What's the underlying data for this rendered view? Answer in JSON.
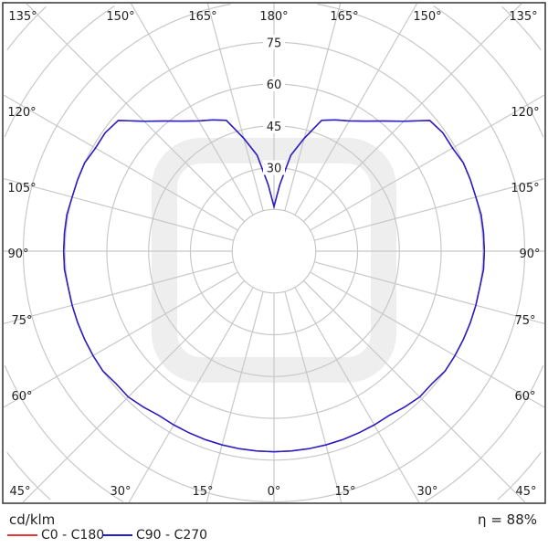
{
  "chart_data": {
    "type": "polar-line",
    "unit_label": "cd/klm",
    "efficiency_label": "η = 88%",
    "radial_ticks": [
      30,
      45,
      60,
      75
    ],
    "radial_rings": [
      15,
      30,
      45,
      60,
      75,
      90,
      105,
      120,
      135
    ],
    "angle_labels": {
      "top": [
        "135°",
        "150°",
        "165°",
        "180°",
        "165°",
        "150°",
        "135°"
      ],
      "left": [
        "120°",
        "105°",
        "90°",
        "75°",
        "60°"
      ],
      "right": [
        "120°",
        "105°",
        "90°",
        "75°",
        "60°"
      ],
      "bottom": [
        "45°",
        "30°",
        "15°",
        "0°",
        "15°",
        "30°",
        "45°"
      ]
    },
    "angles_deg": [
      0,
      5,
      10,
      15,
      20,
      25,
      30,
      35,
      40,
      45,
      50,
      55,
      60,
      65,
      70,
      75,
      80,
      85,
      90,
      95,
      100,
      105,
      110,
      115,
      120,
      125,
      130,
      135,
      140,
      145,
      150,
      155,
      160,
      165,
      170,
      175,
      180
    ],
    "series": [
      {
        "name": "C0 - C180",
        "color": "#e8343a",
        "values": [
          72,
          72,
          72,
          72,
          72,
          72,
          72,
          72,
          73,
          74,
          74,
          75,
          75,
          75,
          75,
          75,
          75,
          75.5,
          75.5,
          75.5,
          75.5,
          75,
          75,
          75,
          74,
          74,
          73,
          66,
          61,
          57,
          54,
          52,
          50,
          42,
          35,
          24,
          16
        ]
      },
      {
        "name": "C90 - C270",
        "color": "#2020d0",
        "values": [
          72,
          72,
          72,
          72,
          72,
          72,
          72,
          72,
          73,
          74,
          74,
          75,
          75,
          75,
          75,
          75,
          75,
          75.5,
          75.5,
          75.5,
          75.5,
          75,
          75,
          75,
          74,
          74,
          73,
          66,
          61,
          57,
          54,
          52,
          50,
          42,
          35,
          24,
          16
        ]
      }
    ],
    "grid": true
  }
}
